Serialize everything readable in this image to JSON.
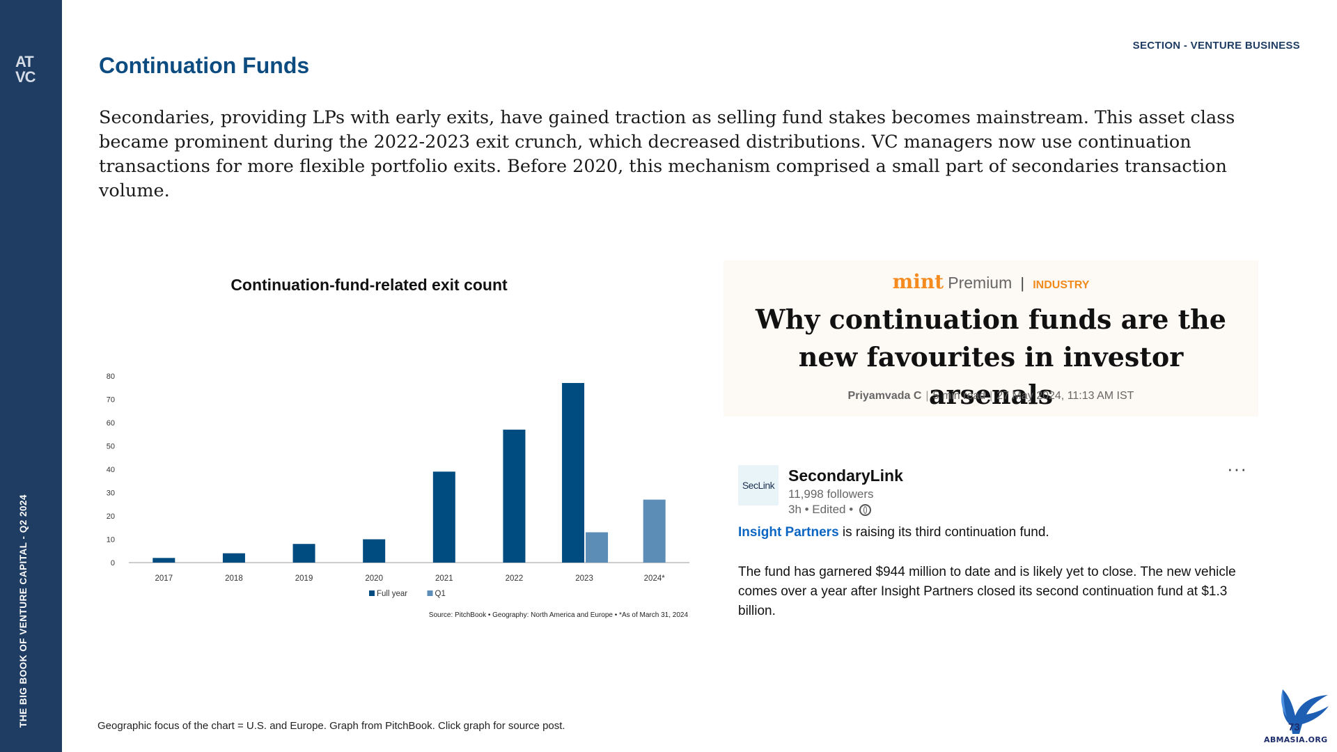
{
  "sidebar": {
    "logo_text": "AT VC",
    "vertical_label": "THE BIG BOOK OF VENTURE CAPITAL - Q2 2024"
  },
  "header": {
    "section_tag": "SECTION - VENTURE BUSINESS",
    "title": "Continuation Funds"
  },
  "intro": "Secondaries, providing LPs with early exits, have gained traction as selling fund stakes becomes mainstream. This asset class became prominent during the 2022-2023 exit crunch, which decreased distributions. VC managers now use continuation transactions for more flexible portfolio exits. Before 2020, this mechanism comprised a small part of secondaries transaction volume.",
  "chart_data": {
    "type": "bar",
    "title": "Continuation-fund-related exit count",
    "categories": [
      "2017",
      "2018",
      "2019",
      "2020",
      "2021",
      "2022",
      "2023",
      "2024*"
    ],
    "series": [
      {
        "name": "Full year",
        "values": [
          2,
          4,
          8,
          10,
          39,
          57,
          77,
          null
        ],
        "color": "#004c80"
      },
      {
        "name": "Q1",
        "values": [
          null,
          null,
          null,
          null,
          null,
          null,
          13,
          27
        ],
        "color": "#5b8db6"
      }
    ],
    "ylim": [
      0,
      80
    ],
    "yticks": [
      0,
      10,
      20,
      30,
      40,
      50,
      60,
      70,
      80
    ],
    "grid": false,
    "legend_position": "bottom-center",
    "source": "Source: PitchBook  •  Geography: North America and Europe  •  *As of March 31, 2024"
  },
  "article": {
    "brand_mint": "mint",
    "brand_premium": "Premium",
    "brand_sep": "|",
    "brand_section": "INDUSTRY",
    "headline": "Why continuation funds are the new favourites in investor arsenals",
    "author": "Priyamvada C",
    "read_time": "5 min read",
    "date": "27 May 2024, 11:13 AM IST"
  },
  "post": {
    "avatar_text": "SecLink",
    "author": "SecondaryLink",
    "followers": "11,998 followers",
    "time": "3h • Edited •",
    "more": "···",
    "link_text": "Insight Partners",
    "line1_rest": " is raising its third continuation fund.",
    "body": "The fund has garnered $944 million to date and is likely yet to close. The new vehicle comes over a year after Insight Partners closed its second continuation fund at $1.3 billion."
  },
  "footnote": "Geographic focus of the chart = U.S. and Europe. Graph from PitchBook. Click graph for source post.",
  "watermark": {
    "page_number": "73",
    "text": "ABMASIA.ORG"
  }
}
